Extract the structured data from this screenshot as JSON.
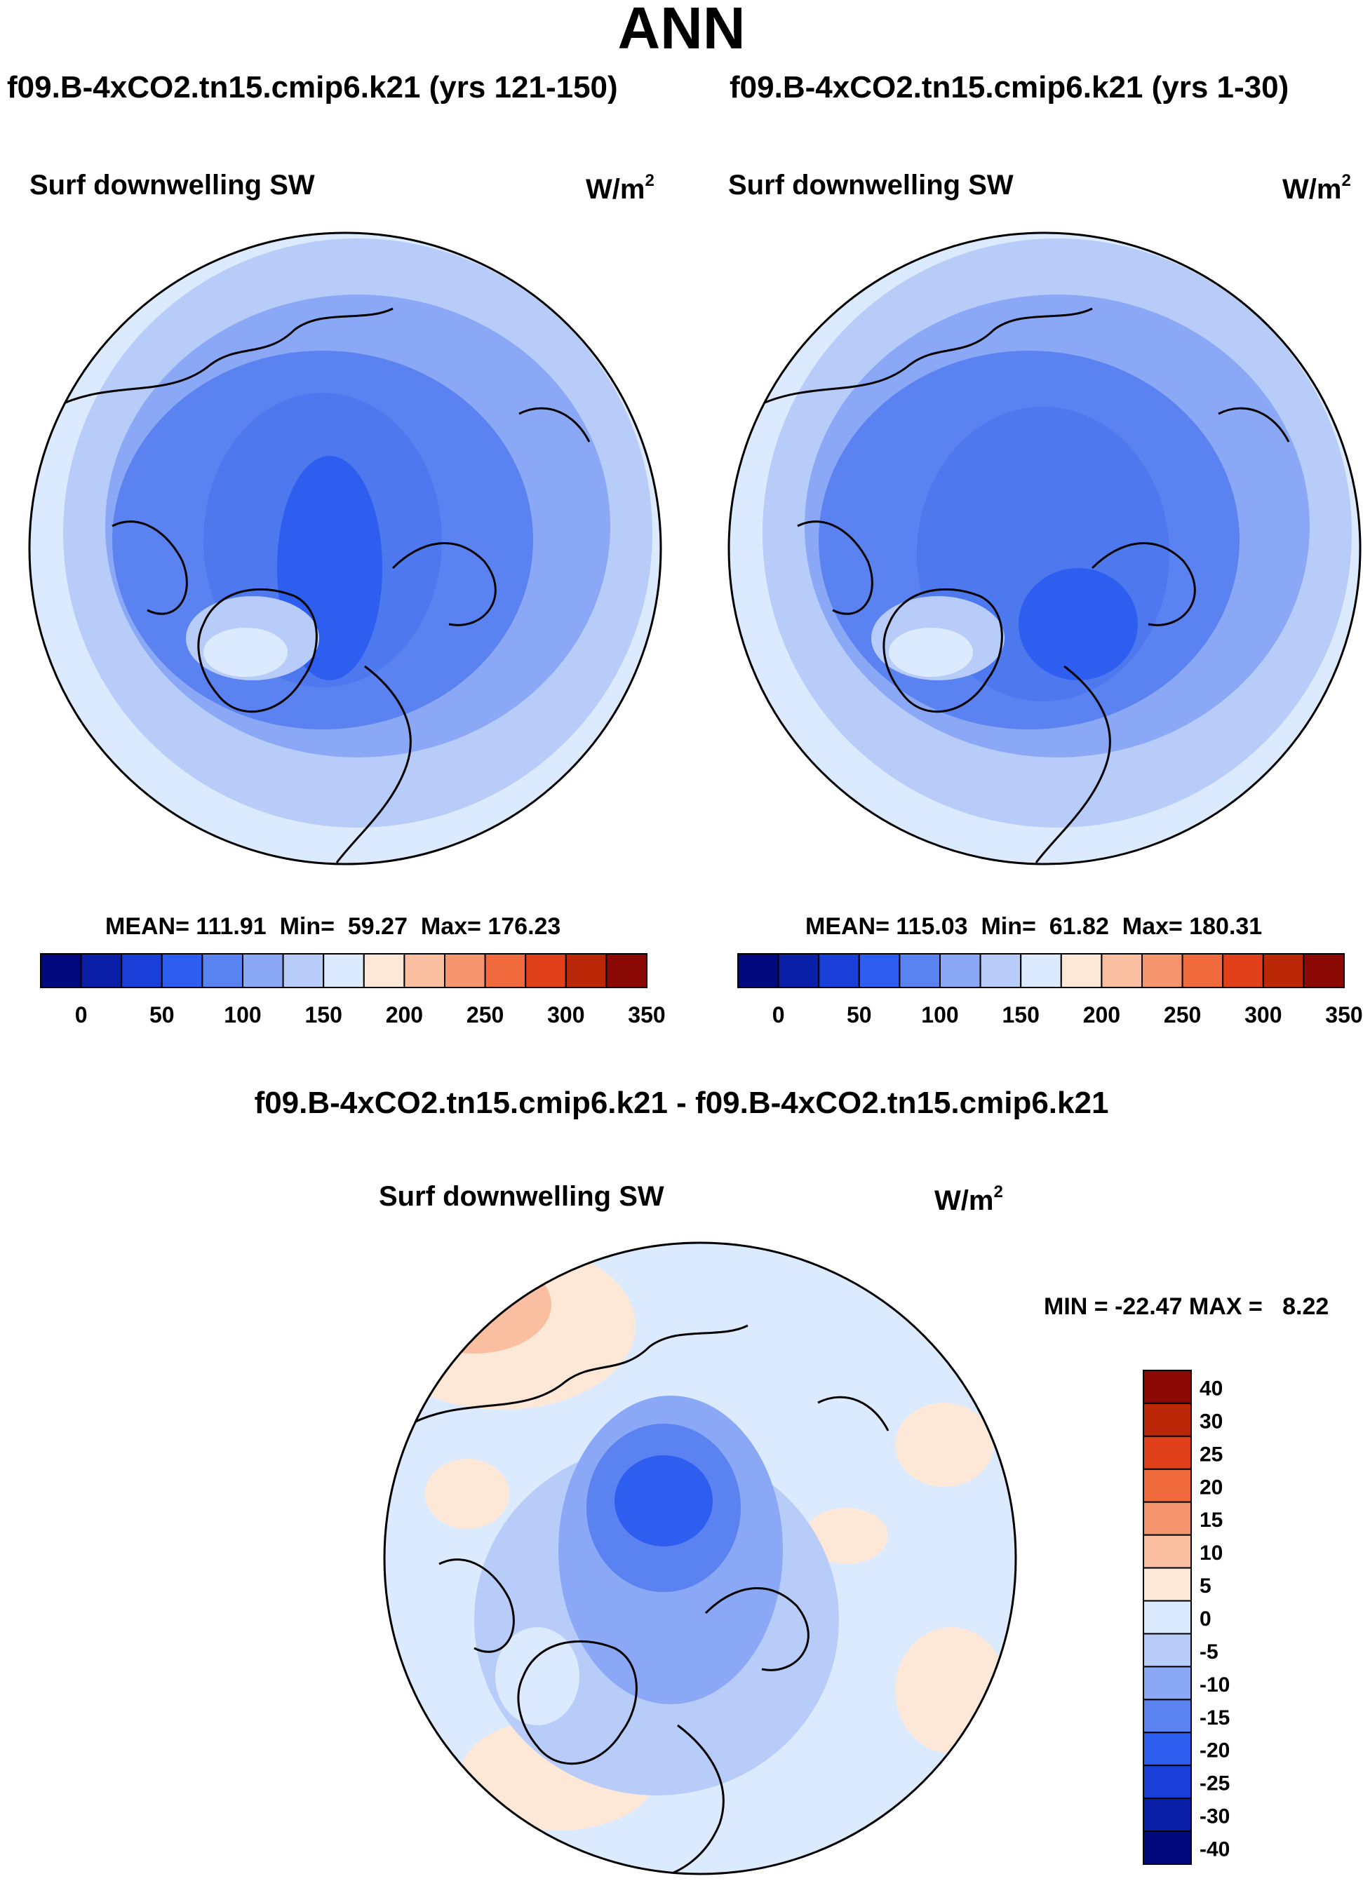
{
  "page": {
    "title": "ANN"
  },
  "panels": [
    {
      "case_title": "f09.B-4xCO2.tn15.cmip6.k21 (yrs 121-150)",
      "variable_label": "Surf downwelling SW",
      "units_base": "W/m",
      "units_exp": "2",
      "stats": {
        "mean_label": "MEAN=",
        "mean": "111.91",
        "min_label": "Min=",
        "min": "59.27",
        "max_label": "Max=",
        "max": "176.23"
      }
    },
    {
      "case_title": "f09.B-4xCO2.tn15.cmip6.k21 (yrs 1-30)",
      "variable_label": "Surf downwelling SW",
      "units_base": "W/m",
      "units_exp": "2",
      "stats": {
        "mean_label": "MEAN=",
        "mean": "115.03",
        "min_label": "Min=",
        "min": "61.82",
        "max_label": "Max=",
        "max": "180.31"
      }
    },
    {
      "case_title": "f09.B-4xCO2.tn15.cmip6.k21 - f09.B-4xCO2.tn15.cmip6.k21",
      "variable_label": "Surf downwelling SW",
      "units_base": "W/m",
      "units_exp": "2",
      "stats": {
        "text": "MIN = -22.47 MAX =   8.22"
      }
    }
  ],
  "chart_data": [
    {
      "type": "heatmap",
      "projection": "north polar stereographic",
      "title": "Surf downwelling SW",
      "units": "W/m2",
      "mean": 111.91,
      "min": 59.27,
      "max": 176.23,
      "colorbar": {
        "orientation": "horizontal",
        "tick_labels": [
          "0",
          "50",
          "100",
          "150",
          "200",
          "250",
          "300",
          "350"
        ],
        "colors": [
          "#000a7e",
          "#0a1fa8",
          "#1a3fd8",
          "#2e5ef0",
          "#5a82f0",
          "#8aa8f5",
          "#b8ccf9",
          "#dceaff",
          "#fde7d6",
          "#f9bfa0",
          "#f59570",
          "#f06a3e",
          "#e0401a",
          "#bb2808",
          "#8b0a05"
        ]
      }
    },
    {
      "type": "heatmap",
      "projection": "north polar stereographic",
      "title": "Surf downwelling SW",
      "units": "W/m2",
      "mean": 115.03,
      "min": 61.82,
      "max": 180.31,
      "colorbar": {
        "orientation": "horizontal",
        "tick_labels": [
          "0",
          "50",
          "100",
          "150",
          "200",
          "250",
          "300",
          "350"
        ],
        "colors": [
          "#000a7e",
          "#0a1fa8",
          "#1a3fd8",
          "#2e5ef0",
          "#5a82f0",
          "#8aa8f5",
          "#b8ccf9",
          "#dceaff",
          "#fde7d6",
          "#f9bfa0",
          "#f59570",
          "#f06a3e",
          "#e0401a",
          "#bb2808",
          "#8b0a05"
        ]
      }
    },
    {
      "type": "heatmap",
      "projection": "north polar stereographic",
      "title": "Surf downwelling SW",
      "units": "W/m2",
      "min": -22.47,
      "max": 8.22,
      "colorbar": {
        "orientation": "vertical",
        "tick_labels": [
          "40",
          "30",
          "25",
          "20",
          "15",
          "10",
          "5",
          "0",
          "-5",
          "-10",
          "-15",
          "-20",
          "-25",
          "-30",
          "-40"
        ],
        "colors": [
          "#8b0a05",
          "#bb2808",
          "#e0401a",
          "#f06a3e",
          "#f59570",
          "#f9bfa0",
          "#fde7d6",
          "#dceaff",
          "#b8ccf9",
          "#8aa8f5",
          "#5a82f0",
          "#2e5ef0",
          "#1a3fd8",
          "#0a1fa8",
          "#000a7e"
        ]
      }
    }
  ]
}
